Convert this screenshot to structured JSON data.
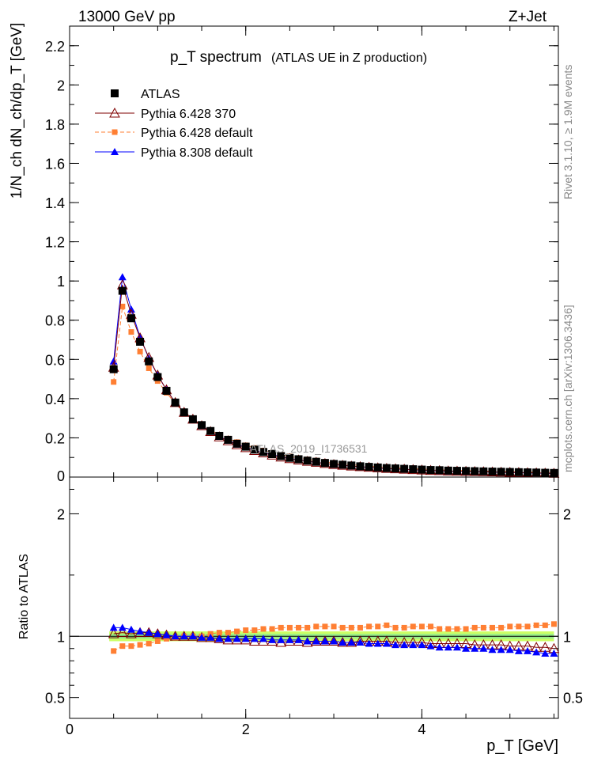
{
  "header": {
    "left": "13000 GeV pp",
    "right": "Z+Jet"
  },
  "side_labels": {
    "top": "Rivet 3.1.10, ≥ 1.9M events",
    "bottom": "mcplots.cern.ch [arXiv:1306.3436]"
  },
  "watermark": "ATLAS_2019_I1736531",
  "chart_data": [
    {
      "type": "scatter",
      "title": "p_T spectrum",
      "subtitle": "(ATLAS UE in Z production)",
      "ylabel": "1/N_ch dN_ch/dp_T [GeV]",
      "xlim": [
        0,
        5.55
      ],
      "ylim": [
        0,
        2.3
      ],
      "x_ticks": [
        0,
        2,
        4
      ],
      "y_ticks": [
        0.2,
        0.4,
        0.6,
        0.8,
        1,
        1.2,
        1.4,
        1.6,
        1.8,
        2,
        2.2
      ],
      "y_tick_labels": [
        "0.2",
        "0.4",
        "0.6",
        "0.8",
        "1",
        "1.2",
        "1.4",
        "1.6",
        "1.8",
        "2",
        "2.2"
      ],
      "legend_position": "top-left",
      "x": [
        0.5,
        0.6,
        0.7,
        0.8,
        0.9,
        1.0,
        1.1,
        1.2,
        1.3,
        1.4,
        1.5,
        1.6,
        1.7,
        1.8,
        1.9,
        2.0,
        2.1,
        2.2,
        2.3,
        2.4,
        2.5,
        2.6,
        2.7,
        2.8,
        2.9,
        3.0,
        3.1,
        3.2,
        3.3,
        3.4,
        3.5,
        3.6,
        3.7,
        3.8,
        3.9,
        4.0,
        4.1,
        4.2,
        4.3,
        4.4,
        4.5,
        4.6,
        4.7,
        4.8,
        4.9,
        5.0,
        5.1,
        5.2,
        5.3,
        5.4,
        5.5
      ],
      "series": [
        {
          "name": "ATLAS",
          "color": "#000000",
          "marker": "square",
          "values": [
            0.55,
            0.95,
            0.81,
            0.69,
            0.59,
            0.51,
            0.44,
            0.38,
            0.33,
            0.295,
            0.265,
            0.235,
            0.21,
            0.19,
            0.17,
            0.155,
            0.14,
            0.128,
            0.117,
            0.107,
            0.098,
            0.091,
            0.084,
            0.078,
            0.072,
            0.067,
            0.063,
            0.059,
            0.055,
            0.052,
            0.049,
            0.046,
            0.044,
            0.042,
            0.04,
            0.038,
            0.036,
            0.035,
            0.033,
            0.032,
            0.031,
            0.03,
            0.029,
            0.028,
            0.027,
            0.026,
            0.025,
            0.024,
            0.023,
            0.022,
            0.021
          ]
        },
        {
          "name": "Pythia 6.428 370",
          "color": "#7f0000",
          "marker": "triangle-open",
          "values": [
            0.56,
            0.98,
            0.83,
            0.71,
            0.61,
            0.52,
            0.445,
            0.38,
            0.33,
            0.295,
            0.262,
            0.232,
            0.205,
            0.185,
            0.165,
            0.15,
            0.135,
            0.123,
            0.112,
            0.102,
            0.094,
            0.087,
            0.08,
            0.075,
            0.069,
            0.064,
            0.06,
            0.056,
            0.053,
            0.05,
            0.047,
            0.044,
            0.042,
            0.04,
            0.038,
            0.036,
            0.034,
            0.033,
            0.031,
            0.03,
            0.029,
            0.028,
            0.027,
            0.026,
            0.025,
            0.024,
            0.023,
            0.022,
            0.021,
            0.02,
            0.019
          ]
        },
        {
          "name": "Pythia 6.428 default",
          "color": "#ff7f33",
          "marker": "square-small",
          "values": [
            0.485,
            0.87,
            0.74,
            0.64,
            0.555,
            0.49,
            0.43,
            0.375,
            0.33,
            0.295,
            0.265,
            0.24,
            0.215,
            0.196,
            0.178,
            0.162,
            0.148,
            0.135,
            0.124,
            0.114,
            0.105,
            0.097,
            0.09,
            0.084,
            0.078,
            0.072,
            0.067,
            0.063,
            0.059,
            0.056,
            0.053,
            0.05,
            0.047,
            0.045,
            0.043,
            0.041,
            0.039,
            0.037,
            0.035,
            0.034,
            0.033,
            0.032,
            0.031,
            0.03,
            0.029,
            0.028,
            0.027,
            0.026,
            0.025,
            0.024,
            0.023
          ]
        },
        {
          "name": "Pythia 8.308 default",
          "color": "#0000ff",
          "marker": "triangle",
          "values": [
            0.59,
            1.02,
            0.855,
            0.715,
            0.605,
            0.52,
            0.445,
            0.38,
            0.33,
            0.295,
            0.262,
            0.233,
            0.206,
            0.187,
            0.167,
            0.152,
            0.137,
            0.125,
            0.114,
            0.104,
            0.095,
            0.088,
            0.081,
            0.075,
            0.069,
            0.064,
            0.06,
            0.056,
            0.052,
            0.049,
            0.046,
            0.043,
            0.041,
            0.039,
            0.037,
            0.035,
            0.033,
            0.032,
            0.03,
            0.029,
            0.028,
            0.027,
            0.026,
            0.025,
            0.024,
            0.023,
            0.022,
            0.021,
            0.02,
            0.019,
            0.018
          ]
        }
      ]
    },
    {
      "type": "scatter",
      "ylabel": "Ratio to ATLAS",
      "xlabel": "p_T [GeV]",
      "xlim": [
        0,
        5.55
      ],
      "ylim": [
        0.33,
        2.3
      ],
      "x_ticks": [
        0,
        2,
        4
      ],
      "x_tick_labels": [
        "0",
        "2",
        "4"
      ],
      "y_ticks": [
        0.5,
        1,
        2
      ],
      "y_tick_labels": [
        "0.5",
        "1",
        "2"
      ],
      "band": {
        "inner": 0.02,
        "outer": 0.04
      },
      "series": [
        {
          "name": "Pythia 6.428 370",
          "color": "#7f0000",
          "marker": "triangle-open",
          "values": [
            1.02,
            1.03,
            1.02,
            1.03,
            1.03,
            1.02,
            1.01,
            1.0,
            1.0,
            1.0,
            0.99,
            0.99,
            0.98,
            0.97,
            0.97,
            0.97,
            0.96,
            0.96,
            0.96,
            0.95,
            0.96,
            0.96,
            0.95,
            0.96,
            0.96,
            0.96,
            0.95,
            0.95,
            0.96,
            0.96,
            0.96,
            0.96,
            0.95,
            0.95,
            0.95,
            0.95,
            0.94,
            0.94,
            0.94,
            0.94,
            0.94,
            0.93,
            0.93,
            0.93,
            0.93,
            0.92,
            0.92,
            0.92,
            0.91,
            0.91,
            0.9
          ]
        },
        {
          "name": "Pythia 6.428 default",
          "color": "#ff7f33",
          "marker": "square-small",
          "values": [
            0.88,
            0.92,
            0.92,
            0.93,
            0.94,
            0.96,
            0.98,
            0.99,
            1.0,
            1.0,
            1.0,
            1.02,
            1.03,
            1.03,
            1.04,
            1.05,
            1.05,
            1.06,
            1.06,
            1.07,
            1.07,
            1.07,
            1.07,
            1.08,
            1.08,
            1.08,
            1.07,
            1.07,
            1.07,
            1.08,
            1.08,
            1.09,
            1.07,
            1.07,
            1.08,
            1.08,
            1.08,
            1.06,
            1.06,
            1.06,
            1.06,
            1.07,
            1.07,
            1.07,
            1.07,
            1.08,
            1.08,
            1.08,
            1.09,
            1.09,
            1.1
          ]
        },
        {
          "name": "Pythia 8.308 default",
          "color": "#0000ff",
          "marker": "triangle",
          "values": [
            1.07,
            1.07,
            1.055,
            1.04,
            1.03,
            1.02,
            1.01,
            1.0,
            1.0,
            1.0,
            0.99,
            0.99,
            0.98,
            0.98,
            0.98,
            0.98,
            0.98,
            0.98,
            0.97,
            0.97,
            0.97,
            0.97,
            0.96,
            0.96,
            0.96,
            0.96,
            0.95,
            0.95,
            0.95,
            0.94,
            0.94,
            0.94,
            0.93,
            0.93,
            0.93,
            0.93,
            0.92,
            0.91,
            0.91,
            0.91,
            0.9,
            0.9,
            0.9,
            0.89,
            0.89,
            0.89,
            0.88,
            0.88,
            0.87,
            0.86,
            0.86
          ]
        }
      ]
    }
  ]
}
